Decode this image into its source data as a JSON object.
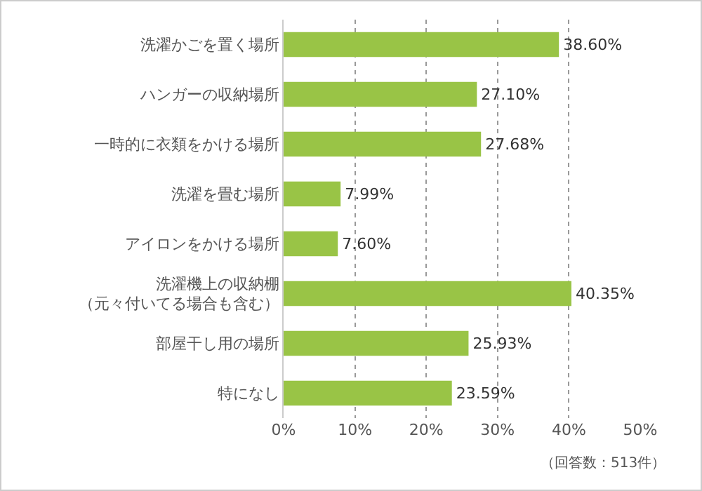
{
  "chart_data": {
    "type": "bar",
    "orientation": "horizontal",
    "categories": [
      "洗濯かごを置く場所",
      "ハンガーの収納場所",
      "一時的に衣類をかける場所",
      "洗濯を畳む場所",
      "アイロンをかける場所",
      "洗濯機上の収納棚（元々付いてる場合も含む）",
      "部屋干し用の場所",
      "特になし"
    ],
    "values": [
      38.6,
      27.1,
      27.68,
      7.99,
      7.6,
      40.35,
      25.93,
      23.59
    ],
    "value_labels": [
      "38.60%",
      "27.10%",
      "27.68%",
      "7.99%",
      "7.60%",
      "40.35%",
      "25.93%",
      "23.59%"
    ],
    "color": "#99c446",
    "xlim": [
      0,
      50
    ],
    "xticks": [
      {
        "value": 0,
        "label": "0%"
      },
      {
        "value": 10,
        "label": "10%"
      },
      {
        "value": 20,
        "label": "20%"
      },
      {
        "value": 30,
        "label": "30%"
      },
      {
        "value": 40,
        "label": "40%"
      },
      {
        "value": 50,
        "label": "50%"
      }
    ],
    "grid": "x",
    "legend": false,
    "annotations": [
      "（回答数：513件）"
    ]
  }
}
